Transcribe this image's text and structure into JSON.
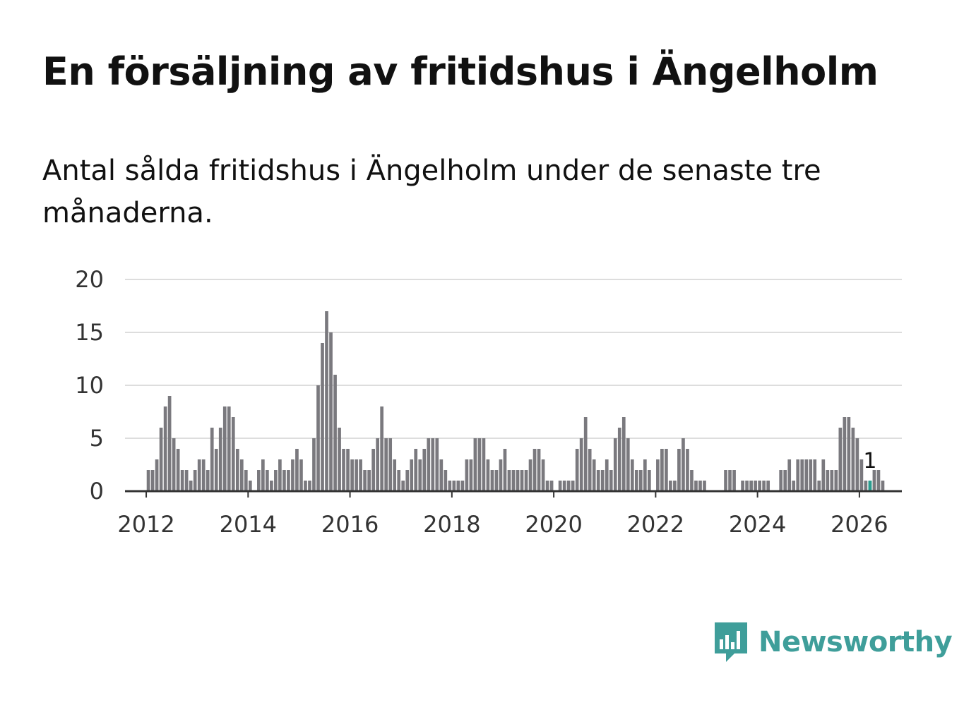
{
  "header": {
    "title": "En försäljning av fritidshus i Ängelholm",
    "subtitle": "Antal sålda fritidshus i Ängelholm under de senaste tre månaderna."
  },
  "brand": {
    "name": "Newsworthy",
    "icon": "newsworthy-chart-logo-icon",
    "color": "#3f9e9a"
  },
  "colors": {
    "bar": "#7a797e",
    "highlight": "#2a9d8f",
    "grid": "#dddddd",
    "axis": "#333333"
  },
  "chart_data": {
    "type": "bar",
    "title": "En försäljning av fritidshus i Ängelholm",
    "subtitle": "Antal sålda fritidshus i Ängelholm under de senaste tre månaderna.",
    "xlabel": "",
    "ylabel": "",
    "ylim": [
      0,
      20
    ],
    "xlim": [
      "2011-08",
      "2026-11"
    ],
    "yticks": [
      0,
      5,
      10,
      15,
      20
    ],
    "xticks": [
      "2012",
      "2014",
      "2016",
      "2018",
      "2020",
      "2022",
      "2024",
      "2026"
    ],
    "grid": true,
    "start_month": "2012-01",
    "values": [
      2,
      2,
      3,
      6,
      8,
      9,
      5,
      4,
      2,
      2,
      1,
      2,
      3,
      3,
      2,
      6,
      4,
      6,
      8,
      8,
      7,
      4,
      3,
      2,
      1,
      0,
      2,
      3,
      2,
      1,
      2,
      3,
      2,
      2,
      3,
      4,
      3,
      1,
      1,
      5,
      10,
      14,
      17,
      15,
      11,
      6,
      4,
      4,
      3,
      3,
      3,
      2,
      2,
      4,
      5,
      8,
      5,
      5,
      3,
      2,
      1,
      2,
      3,
      4,
      3,
      4,
      5,
      5,
      5,
      3,
      2,
      1,
      1,
      1,
      1,
      3,
      3,
      5,
      5,
      5,
      3,
      2,
      2,
      3,
      4,
      2,
      2,
      2,
      2,
      2,
      3,
      4,
      4,
      3,
      1,
      1,
      0,
      1,
      1,
      1,
      1,
      4,
      5,
      7,
      4,
      3,
      2,
      2,
      3,
      2,
      5,
      6,
      7,
      5,
      3,
      2,
      2,
      3,
      2,
      0,
      3,
      4,
      4,
      1,
      1,
      4,
      5,
      4,
      2,
      1,
      1,
      1,
      0,
      0,
      0,
      0,
      2,
      2,
      2,
      0,
      1,
      1,
      1,
      1,
      1,
      1,
      1,
      0,
      0,
      2,
      2,
      3,
      1,
      3,
      3,
      3,
      3,
      3,
      1,
      3,
      2,
      2,
      2,
      6,
      7,
      7,
      6,
      5,
      3,
      1,
      1,
      2,
      2,
      1
    ],
    "highlight": {
      "month": "2026-03",
      "value": 1,
      "label": "1"
    }
  }
}
